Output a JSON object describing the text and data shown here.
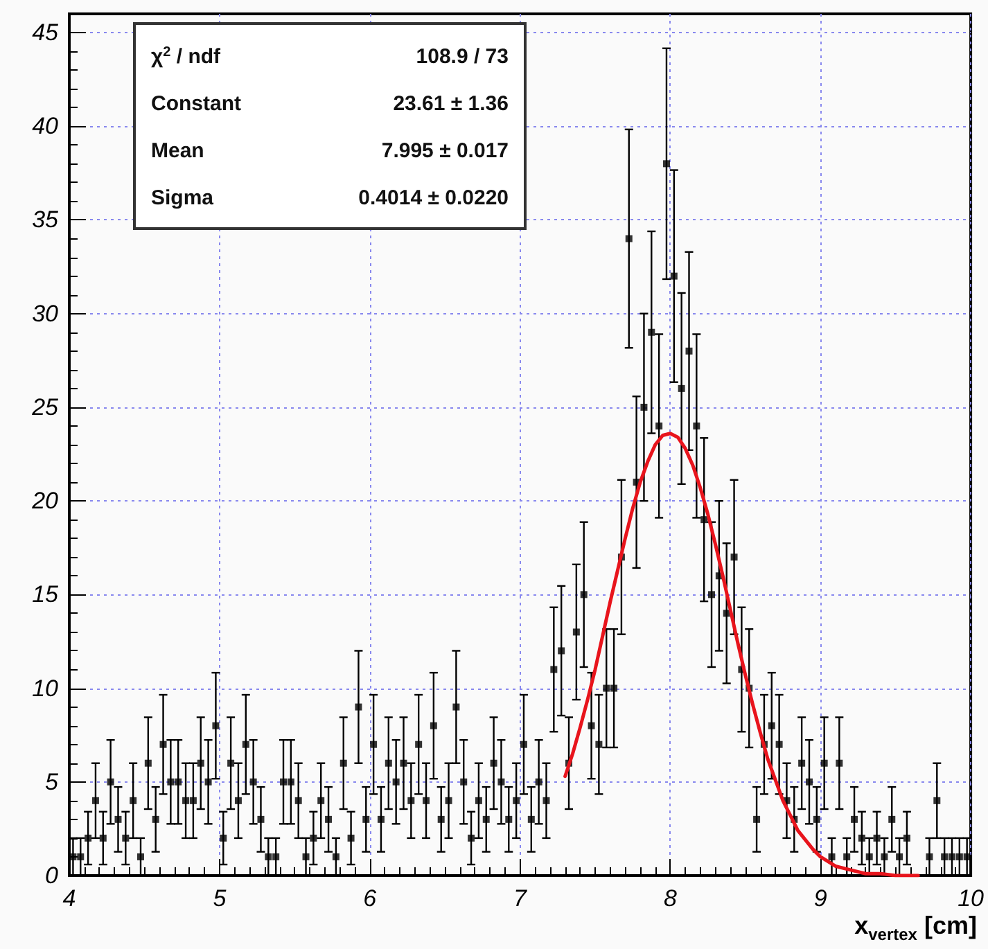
{
  "chart_data": {
    "type": "scatter",
    "xlabel": "x$_{vertex}$ [cm]",
    "xlim": [
      4,
      10
    ],
    "xticks": [
      4,
      5,
      6,
      7,
      8,
      9,
      10
    ],
    "ylim": [
      0,
      46
    ],
    "yticks": [
      0,
      5,
      10,
      15,
      20,
      25,
      30,
      35,
      40,
      45
    ],
    "grid": true,
    "marker": "square",
    "annotations": [
      "χ$^{2}$ / ndf",
      "108.9 / 73",
      "Constant",
      "23.61 ± 1.36",
      "Mean",
      "7.995 ± 0.017",
      "Sigma",
      "0.4014 ± 0.0220"
    ],
    "series": [
      {
        "color": "#000000",
        "x": [
          4.025,
          4.075,
          4.125,
          4.175,
          4.225,
          4.275,
          4.325,
          4.375,
          4.425,
          4.475,
          4.525,
          4.575,
          4.625,
          4.675,
          4.725,
          4.775,
          4.825,
          4.875,
          4.925,
          4.975,
          5.025,
          5.075,
          5.125,
          5.175,
          5.225,
          5.275,
          5.325,
          5.375,
          5.425,
          5.475,
          5.525,
          5.575,
          5.625,
          5.675,
          5.725,
          5.775,
          5.825,
          5.875,
          5.925,
          5.975,
          6.025,
          6.075,
          6.125,
          6.175,
          6.225,
          6.275,
          6.325,
          6.375,
          6.425,
          6.475,
          6.525,
          6.575,
          6.625,
          6.675,
          6.725,
          6.775,
          6.825,
          6.875,
          6.925,
          6.975,
          7.025,
          7.075,
          7.125,
          7.175,
          7.225,
          7.275,
          7.325,
          7.375,
          7.425,
          7.475,
          7.525,
          7.575,
          7.625,
          7.675,
          7.725,
          7.775,
          7.825,
          7.875,
          7.925,
          7.975,
          8.025,
          8.075,
          8.125,
          8.175,
          8.225,
          8.275,
          8.325,
          8.375,
          8.425,
          8.475,
          8.525,
          8.575,
          8.625,
          8.675,
          8.725,
          8.775,
          8.825,
          8.875,
          8.925,
          8.975,
          9.025,
          9.075,
          9.125,
          9.175,
          9.225,
          9.275,
          9.325,
          9.375,
          9.425,
          9.475,
          9.525,
          9.575,
          9.625,
          9.675,
          9.725,
          9.775,
          9.825,
          9.875,
          9.925,
          9.975
        ],
        "values": [
          1,
          1,
          2,
          4,
          2,
          5,
          3,
          2,
          4,
          1,
          6,
          3,
          7,
          5,
          5,
          4,
          4,
          6,
          5,
          8,
          2,
          6,
          4,
          7,
          5,
          3,
          1,
          1,
          5,
          5,
          4,
          1,
          2,
          4,
          3,
          1,
          6,
          2,
          9,
          3,
          7,
          3,
          6,
          5,
          6,
          4,
          7,
          4,
          8,
          3,
          4,
          9,
          5,
          2,
          4,
          3,
          6,
          5,
          3,
          4,
          7,
          3,
          5,
          4,
          11,
          12,
          6,
          13,
          15,
          8,
          7,
          10,
          10,
          17,
          34,
          21,
          25,
          29,
          24,
          38,
          32,
          26,
          28,
          24,
          19,
          15,
          16,
          14,
          17,
          11,
          10,
          3,
          7,
          8,
          7,
          4,
          3,
          6,
          5,
          3,
          6,
          1,
          6,
          1,
          3,
          2,
          1,
          2,
          1,
          3,
          1,
          2,
          null,
          null,
          1,
          4,
          1,
          1,
          1,
          1
        ],
        "errors": [
          1,
          1,
          1.41,
          2,
          1.41,
          2.24,
          1.73,
          1.41,
          2,
          1,
          2.45,
          1.73,
          2.65,
          2.24,
          2.24,
          2,
          2,
          2.45,
          2.24,
          2.83,
          1.41,
          2.45,
          2,
          2.65,
          2.24,
          1.73,
          1,
          1,
          2.24,
          2.24,
          2,
          1,
          1.41,
          2,
          1.73,
          1,
          2.45,
          1.41,
          3,
          1.73,
          2.65,
          1.73,
          2.45,
          2.24,
          2.45,
          2,
          2.65,
          2,
          2.83,
          1.73,
          2,
          3,
          2.24,
          1.41,
          2,
          1.73,
          2.45,
          2.24,
          1.73,
          2,
          2.65,
          1.73,
          2.24,
          2,
          3.32,
          3.46,
          2.45,
          3.61,
          3.87,
          2.83,
          2.65,
          3.16,
          3.16,
          4.12,
          5.83,
          4.58,
          5,
          5.39,
          4.9,
          6.16,
          5.66,
          5.1,
          5.29,
          4.9,
          4.36,
          3.87,
          4,
          3.74,
          4.12,
          3.32,
          3.16,
          1.73,
          2.65,
          2.83,
          2.65,
          2,
          1.73,
          2.45,
          2.24,
          1.73,
          2.45,
          1,
          2.45,
          1,
          1.73,
          1.41,
          1,
          1.41,
          1,
          1.73,
          1,
          1.41,
          null,
          null,
          1,
          2,
          1,
          1,
          1,
          1
        ]
      },
      {
        "type": "line",
        "color": "#e8141c",
        "marker": "none",
        "x": [
          7.3,
          7.35,
          7.4,
          7.45,
          7.5,
          7.55,
          7.6,
          7.65,
          7.7,
          7.75,
          7.8,
          7.85,
          7.9,
          7.95,
          8.0,
          8.05,
          8.1,
          8.15,
          8.2,
          8.25,
          8.3,
          8.35,
          8.4,
          8.45,
          8.5,
          8.55,
          8.6,
          8.65,
          8.7,
          8.75,
          8.8,
          8.85,
          8.9,
          8.95,
          9.0,
          9.1,
          9.2,
          9.3,
          9.4,
          9.5,
          9.65
        ],
        "values": [
          5.3,
          6.5,
          7.9,
          9.4,
          11.0,
          12.8,
          14.6,
          16.3,
          18.0,
          19.6,
          21.0,
          22.1,
          23.0,
          23.5,
          23.6,
          23.4,
          22.8,
          21.9,
          20.7,
          19.3,
          17.7,
          16.0,
          14.2,
          12.4,
          10.7,
          9.1,
          7.6,
          6.2,
          5.1,
          4.0,
          3.2,
          2.4,
          1.9,
          1.4,
          1.0,
          0.5,
          0.3,
          0.1,
          0.1,
          0.0,
          0.0
        ]
      }
    ]
  }
}
